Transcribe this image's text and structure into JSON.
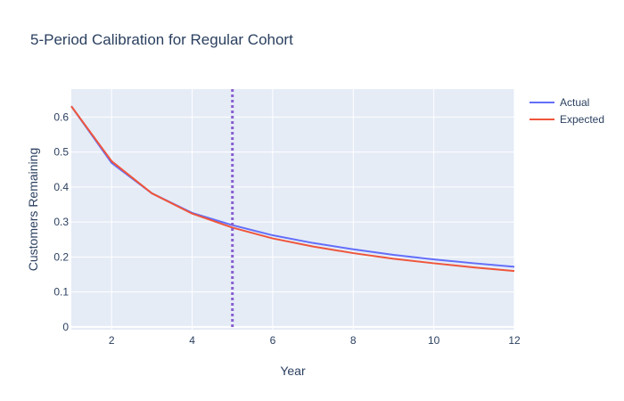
{
  "chart_data": {
    "type": "line",
    "title": "5-Period Calibration for Regular Cohort",
    "xlabel": "Year",
    "ylabel": "Customers Remaining",
    "xlim": [
      1,
      12
    ],
    "ylim": [
      -0.008,
      0.68
    ],
    "x_ticks": [
      2,
      4,
      6,
      8,
      10,
      12
    ],
    "y_ticks": [
      0,
      0.1,
      0.2,
      0.3,
      0.4,
      0.5,
      0.6
    ],
    "grid": true,
    "legend_position": "top-right",
    "x": [
      1,
      2,
      3,
      4,
      5,
      6,
      7,
      8,
      9,
      10,
      11,
      12
    ],
    "series": [
      {
        "name": "Actual",
        "color": "#636efa",
        "values": [
          0.631,
          0.469,
          0.382,
          0.326,
          0.291,
          0.262,
          0.24,
          0.222,
          0.206,
          0.193,
          0.182,
          0.172
        ]
      },
      {
        "name": "Expected",
        "color": "#ef553b",
        "values": [
          0.631,
          0.474,
          0.382,
          0.324,
          0.284,
          0.253,
          0.23,
          0.211,
          0.195,
          0.182,
          0.17,
          0.16
        ]
      }
    ],
    "vline": {
      "x": 5,
      "color": "#8a5fd0",
      "style": "dotted"
    }
  }
}
